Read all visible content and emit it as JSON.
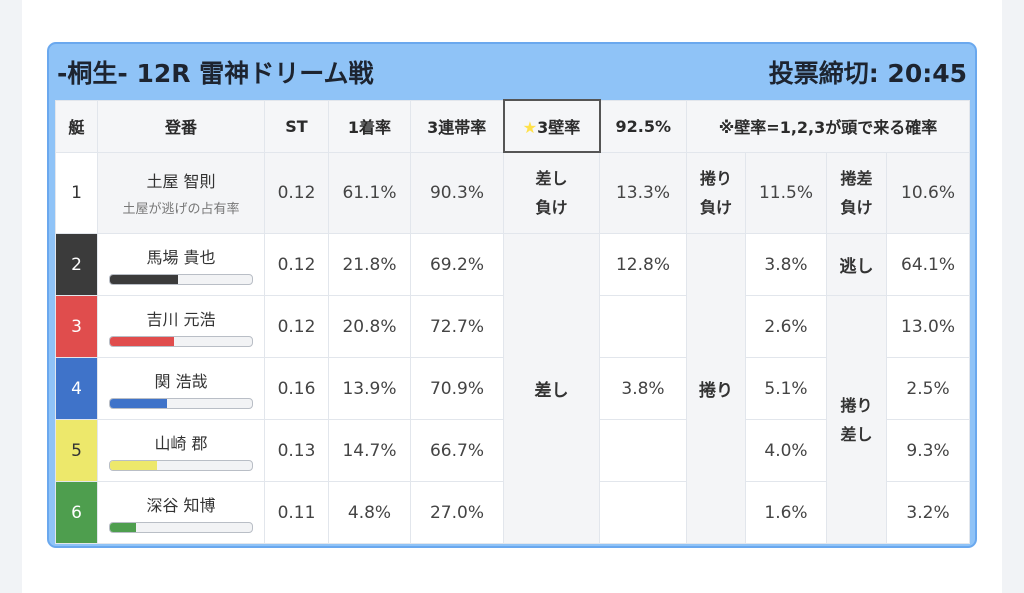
{
  "header": {
    "title": "-桐生- 12R 雷神ドリーム戦",
    "deadline": "投票締切: 20:45"
  },
  "columns": {
    "lane": "艇",
    "name": "登番",
    "st": "ST",
    "first_rate": "1着率",
    "trio_rate": "3連帯率",
    "kabe_star": "★",
    "kabe_label": "3壁率",
    "kabe_pct": "92.5%",
    "note": "※壁率=1,2,3が頭で来る確率"
  },
  "rows": [
    {
      "lane": "1",
      "name": "土屋 智則",
      "sub": "土屋が逃げの占有率",
      "st": "0.12",
      "first": "61.1%",
      "trio": "90.3%",
      "d1": "13.3%",
      "d2": "11.5%",
      "d3": "10.6%"
    },
    {
      "lane": "2",
      "name": "馬場 貴也",
      "bar": 0.48,
      "color": "#3b3b3b",
      "st": "0.12",
      "first": "21.8%",
      "trio": "69.2%",
      "d1": "12.8%",
      "d2": "3.8%",
      "d3": "64.1%"
    },
    {
      "lane": "3",
      "name": "吉川 元浩",
      "bar": 0.45,
      "color": "#e04d4d",
      "st": "0.12",
      "first": "20.8%",
      "trio": "72.7%",
      "d1": "",
      "d2": "2.6%",
      "d3": "13.0%"
    },
    {
      "lane": "4",
      "name": "関 浩哉",
      "bar": 0.4,
      "color": "#3f73c9",
      "st": "0.16",
      "first": "13.9%",
      "trio": "70.9%",
      "d1": "3.8%",
      "d2": "5.1%",
      "d3": "2.5%"
    },
    {
      "lane": "5",
      "name": "山崎 郡",
      "bar": 0.33,
      "color": "#ede86b",
      "st": "0.13",
      "first": "14.7%",
      "trio": "66.7%",
      "d1": "",
      "d2": "4.0%",
      "d3": "9.3%"
    },
    {
      "lane": "6",
      "name": "深谷 知博",
      "bar": 0.18,
      "color": "#4e9e4e",
      "st": "0.11",
      "first": "4.8%",
      "trio": "27.0%",
      "d1": "",
      "d2": "1.6%",
      "d3": "3.2%"
    }
  ],
  "labels": {
    "sashi_make_1": "差し",
    "sashi_make_2": "負け",
    "makuri_make_1": "捲り",
    "makuri_make_2": "負け",
    "makurisashi_make_1": "捲差",
    "makurisashi_make_2": "負け",
    "nige": "逃し",
    "sashi": "差し",
    "makuri": "捲り",
    "makurisashi_1": "捲り",
    "makurisashi_2": "差し"
  }
}
